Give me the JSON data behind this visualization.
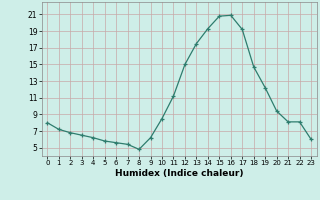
{
  "x": [
    0,
    1,
    2,
    3,
    4,
    5,
    6,
    7,
    8,
    9,
    10,
    11,
    12,
    13,
    14,
    15,
    16,
    17,
    18,
    19,
    20,
    21,
    22,
    23
  ],
  "y": [
    8.0,
    7.2,
    6.8,
    6.5,
    6.2,
    5.8,
    5.6,
    5.4,
    4.8,
    6.2,
    8.5,
    11.2,
    15.0,
    17.5,
    19.3,
    20.8,
    20.9,
    19.2,
    14.7,
    12.2,
    9.4,
    8.1,
    8.1,
    6.0
  ],
  "xlabel": "Humidex (Indice chaleur)",
  "xlim": [
    -0.5,
    23.5
  ],
  "ylim": [
    4.0,
    22.5
  ],
  "yticks": [
    5,
    7,
    9,
    11,
    13,
    15,
    17,
    19,
    21
  ],
  "xticks": [
    0,
    1,
    2,
    3,
    4,
    5,
    6,
    7,
    8,
    9,
    10,
    11,
    12,
    13,
    14,
    15,
    16,
    17,
    18,
    19,
    20,
    21,
    22,
    23
  ],
  "line_color": "#2e7d6e",
  "marker": "+",
  "bg_color": "#ceeee8",
  "grid_color_major": "#c8a8a8",
  "grid_color_minor": "#e0d0d0",
  "axes_bg": "#ceeee8"
}
